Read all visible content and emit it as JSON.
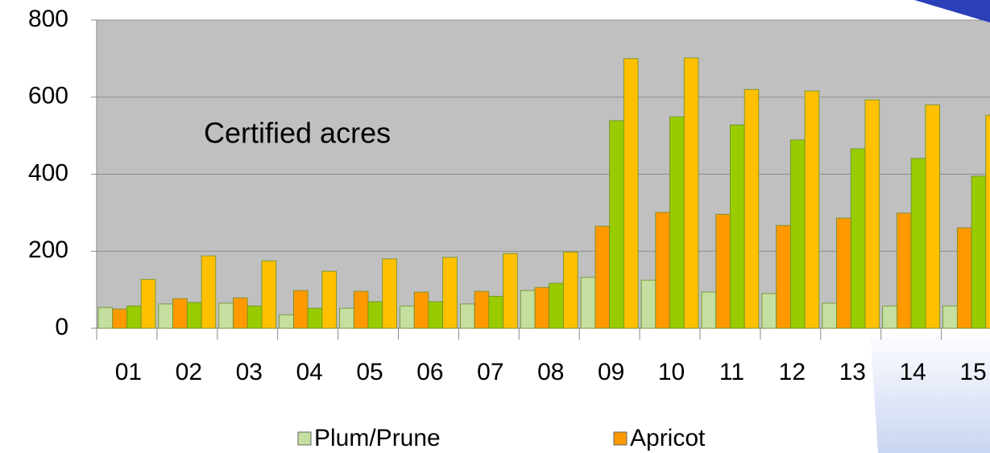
{
  "chart_data": {
    "type": "bar",
    "title": "Certified acres",
    "categories": [
      "01",
      "02",
      "03",
      "04",
      "05",
      "06",
      "07",
      "08",
      "09",
      "10",
      "11",
      "12",
      "13",
      "14",
      "15"
    ],
    "series": [
      {
        "name": "Plum/Prune",
        "color": "#c4dfa0",
        "values": [
          54,
          63,
          65,
          35,
          52,
          58,
          63,
          98,
          132,
          125,
          94,
          90,
          65,
          58,
          58
        ]
      },
      {
        "name": "Apricot",
        "color": "#ff9900",
        "values": [
          50,
          77,
          79,
          98,
          96,
          94,
          96,
          106,
          265,
          301,
          296,
          267,
          286,
          299,
          261
        ]
      },
      {
        "color": "#99cc00",
        "values": [
          58,
          67,
          58,
          52,
          69,
          69,
          83,
          117,
          539,
          549,
          528,
          489,
          466,
          441,
          395
        ]
      },
      {
        "color": "#ffc000",
        "values": [
          127,
          188,
          175,
          148,
          180,
          184,
          194,
          198,
          700,
          702,
          620,
          616,
          593,
          580,
          553
        ]
      }
    ],
    "ylim": [
      0,
      800
    ],
    "yticks": [
      0,
      200,
      400,
      600,
      800
    ],
    "grid": true
  }
}
